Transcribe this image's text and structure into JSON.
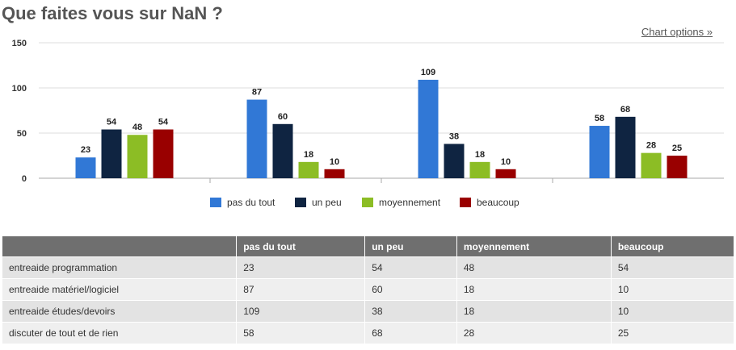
{
  "header": {
    "title": "Que faites vous sur NaN ?",
    "chart_options": "Chart options »"
  },
  "chart_data": {
    "type": "bar",
    "title": "Que faites vous sur NaN ?",
    "categories": [
      "entreaide programmation",
      "entreaide matériel/logiciel",
      "entreaide études/devoirs",
      "discuter de tout et de rien"
    ],
    "series": [
      {
        "name": "pas du tout",
        "color": "#3178d6",
        "values": [
          23,
          87,
          109,
          58
        ]
      },
      {
        "name": "un peu",
        "color": "#0f2441",
        "values": [
          54,
          60,
          38,
          68
        ]
      },
      {
        "name": "moyennement",
        "color": "#8cbd25",
        "values": [
          48,
          18,
          18,
          28
        ]
      },
      {
        "name": "beaucoup",
        "color": "#990000",
        "values": [
          54,
          10,
          10,
          25
        ]
      }
    ],
    "ylim": [
      0,
      150
    ],
    "yticks": [
      0,
      50,
      100,
      150
    ],
    "xlabel": "",
    "ylabel": "",
    "grid": true,
    "legend": "bottom-center"
  },
  "table": {
    "headers": [
      "",
      "pas du tout",
      "un peu",
      "moyennement",
      "beaucoup"
    ]
  }
}
